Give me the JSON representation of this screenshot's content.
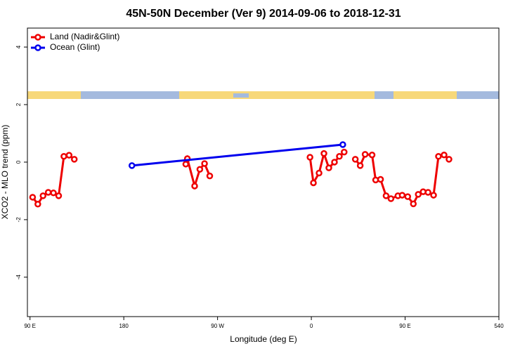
{
  "chart_data": {
    "type": "line",
    "title": "45N-50N December (Ver 9)   2014-09-06 to 2018-12-31",
    "x_label": "Longitude (deg E)",
    "y_label": "XCO2 - MLO trend (ppm)",
    "xlim": [
      87.5,
      540
    ],
    "ylim": [
      -5.37,
      4.66
    ],
    "xticks": [
      {
        "value": 90,
        "label": "90 E"
      },
      180,
      {
        "value": 270,
        "label": "90 W"
      },
      {
        "value": 360,
        "label": "0"
      },
      {
        "value": 450,
        "label": "90 E"
      },
      540
    ],
    "yticks": [
      -4,
      -2,
      0,
      2,
      4
    ],
    "grid": false,
    "legend": "top-left",
    "series": [
      {
        "name": "Land (Nadir&Glint)",
        "color": "#ee0000",
        "x": [
          92.5,
          97.5,
          102.5,
          107.5,
          112.5,
          117.5,
          122.5,
          127.5,
          132.5,
          null,
          239.5,
          241,
          248,
          253,
          257.5,
          262.5,
          null,
          358.7,
          362,
          367.4,
          372.1,
          376.8,
          382.2,
          386.9,
          391.5,
          null,
          402.2,
          406.9,
          411.6,
          418.3,
          421.7,
          426.4,
          431.7,
          436.4,
          443.1,
          447.2,
          452.5,
          457.9,
          462.6,
          467.3,
          472,
          477.3,
          482,
          487.4,
          492.1
        ],
        "values": [
          -1.22,
          -1.46,
          -1.17,
          -1.05,
          -1.07,
          -1.17,
          0.2,
          0.24,
          0.1,
          null,
          -0.07,
          0.12,
          -0.83,
          -0.25,
          -0.05,
          -0.48,
          null,
          0.17,
          -0.72,
          -0.38,
          0.3,
          -0.2,
          0,
          0.2,
          0.35,
          null,
          0.1,
          -0.12,
          0.27,
          0.25,
          -0.62,
          -0.6,
          -1.17,
          -1.27,
          -1.17,
          -1.15,
          -1.2,
          -1.45,
          -1.12,
          -1.03,
          -1.05,
          -1.15,
          0.2,
          0.25,
          0.1
        ]
      },
      {
        "name": "Ocean (Glint)",
        "color": "#0000ee",
        "x": [
          187.8,
          390.2
        ],
        "values": [
          -0.12,
          0.61
        ]
      }
    ]
  }
}
